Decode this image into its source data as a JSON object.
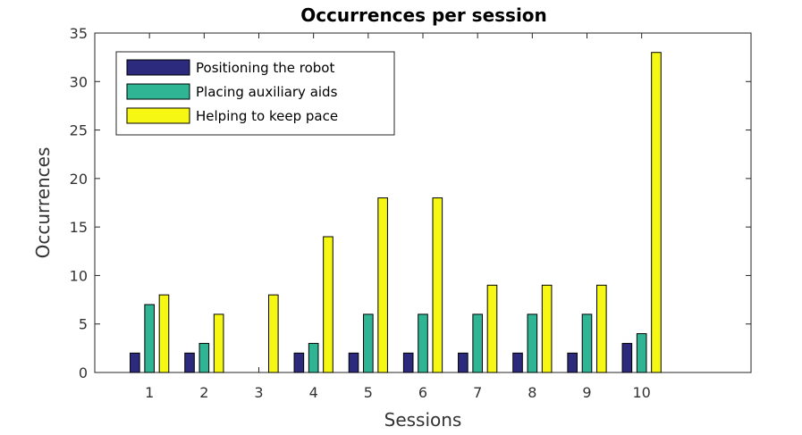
{
  "chart_data": {
    "type": "bar",
    "title": "Occurrences per session",
    "xlabel": "Sessions",
    "ylabel": "Occurrences",
    "categories": [
      "1",
      "2",
      "3",
      "4",
      "5",
      "6",
      "7",
      "8",
      "9",
      "10"
    ],
    "xlim": [
      0,
      12
    ],
    "ylim": [
      0,
      35
    ],
    "yticks": [
      0,
      5,
      10,
      15,
      20,
      25,
      30,
      35
    ],
    "grid": false,
    "legend_position": "top-left",
    "series": [
      {
        "name": "Positioning the robot",
        "color": "#2b2a7c",
        "values": [
          2,
          2,
          0,
          2,
          2,
          2,
          2,
          2,
          2,
          3
        ]
      },
      {
        "name": "Placing auxiliary aids",
        "color": "#30b594",
        "values": [
          7,
          3,
          0,
          3,
          6,
          6,
          6,
          6,
          6,
          4
        ]
      },
      {
        "name": "Helping to keep pace",
        "color": "#f7f714",
        "values": [
          8,
          6,
          8,
          14,
          18,
          18,
          9,
          9,
          9,
          33
        ]
      }
    ]
  }
}
